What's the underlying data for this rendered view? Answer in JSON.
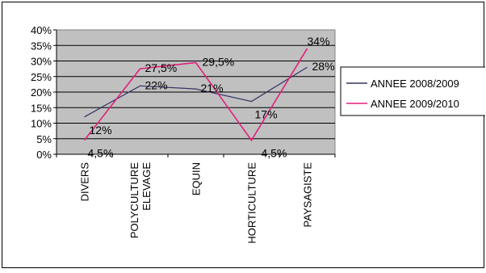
{
  "chart_data": {
    "type": "line",
    "title": "",
    "xlabel": "",
    "ylabel": "",
    "categories": [
      "DIVERS",
      "POLYCULTURE ELEVAGE",
      "EQUIN",
      "HORTICULTURE",
      "PAYSAGISTE"
    ],
    "category_lines": [
      [
        "DIVERS"
      ],
      [
        "POLYCULTURE",
        "ELEVAGE"
      ],
      [
        "EQUIN"
      ],
      [
        "HORTICULTURE"
      ],
      [
        "PAYSAGISTE"
      ]
    ],
    "ylim": [
      0,
      40
    ],
    "yticks": [
      0,
      5,
      10,
      15,
      20,
      25,
      30,
      35,
      40
    ],
    "ytick_labels": [
      "0%",
      "5%",
      "10%",
      "15%",
      "20%",
      "25%",
      "30%",
      "35%",
      "40%"
    ],
    "grid": true,
    "legend_position": "right",
    "plot_background": "#C0C0C0",
    "series": [
      {
        "name": "ANNEE 2008/2009",
        "color": "#333366",
        "values": [
          12,
          22,
          21,
          17,
          28
        ],
        "labels": [
          "12%",
          "22%",
          "21%",
          "17%",
          "28%"
        ]
      },
      {
        "name": "ANNEE 2009/2010",
        "color": "#E0207A",
        "values": [
          4.5,
          27.5,
          29.5,
          4.5,
          34
        ],
        "labels": [
          "4,5%",
          "27,5%",
          "29,5%",
          "4,5%",
          "34%"
        ]
      }
    ]
  }
}
